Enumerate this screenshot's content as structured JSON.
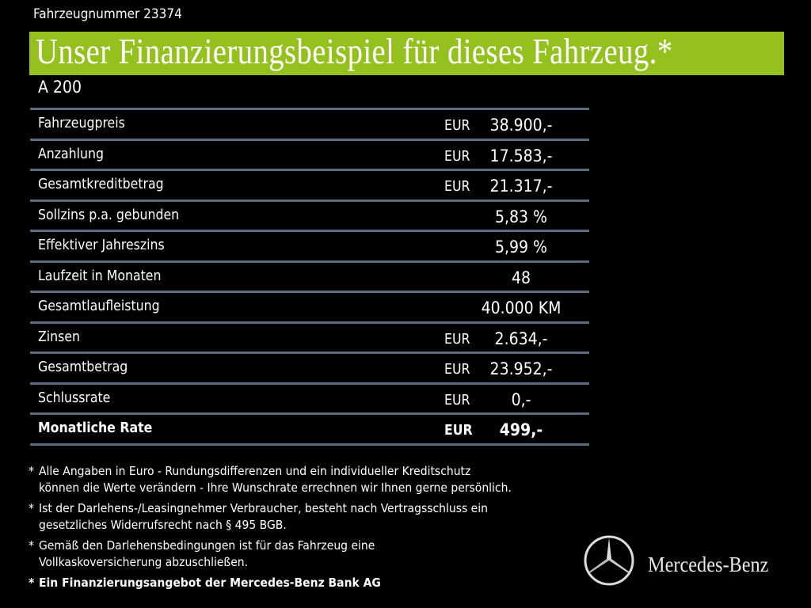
{
  "vehicle_number": "Fahrzeugnummer 23374",
  "title": "Unser Finanzierungsbeispiel für dieses Fahrzeug.*",
  "model": "A 200",
  "rows": [
    {
      "label": "Fahrzeugpreis",
      "currency": "EUR",
      "value": "38.900,-"
    },
    {
      "label": "Anzahlung",
      "currency": "EUR",
      "value": "17.583,-"
    },
    {
      "label": "Gesamtkreditbetrag",
      "currency": "EUR",
      "value": "21.317,-"
    },
    {
      "label": "Sollzins p.a. gebunden",
      "currency": "",
      "value": "5,83 %"
    },
    {
      "label": "Effektiver Jahreszins",
      "currency": "",
      "value": "5,99 %"
    },
    {
      "label": "Laufzeit in Monaten",
      "currency": "",
      "value": "48"
    },
    {
      "label": "Gesamtlaufleistung",
      "currency": "",
      "value": "40.000 KM"
    },
    {
      "label": "Zinsen",
      "currency": "EUR",
      "value": "2.634,-"
    },
    {
      "label": "Gesamtbetrag",
      "currency": "EUR",
      "value": "23.952,-"
    },
    {
      "label": "Schlussrate",
      "currency": "EUR",
      "value": "0,-"
    },
    {
      "label": "Monatliche Rate",
      "currency": "EUR",
      "value": "499,-"
    }
  ],
  "notes": [
    {
      "line1": "Alle Angaben in Euro - Rundungsdifferenzen und ein individueller Kreditschutz",
      "line2": "können die Werte verändern - Ihre Wunschrate errechnen wir Ihnen gerne persönlich."
    },
    {
      "line1": "Ist der Darlehens-/Leasingnehmer Verbraucher, besteht nach Vertragsschluss ein",
      "line2": "gesetzliches  Widerrufsrecht nach § 495 BGB."
    },
    {
      "line1": "Gemäß den Darlehensbedingungen ist für das Fahrzeug eine",
      "line2": "Vollkaskoversicherung abzuschließen."
    },
    {
      "line1": "Ein Finanzierungsangebot der Mercedes-Benz Bank AG",
      "line2": ""
    }
  ],
  "brand": "Mercedes-Benz",
  "colors": {
    "banner": "#95c11f",
    "divider": "#5b6b80"
  }
}
